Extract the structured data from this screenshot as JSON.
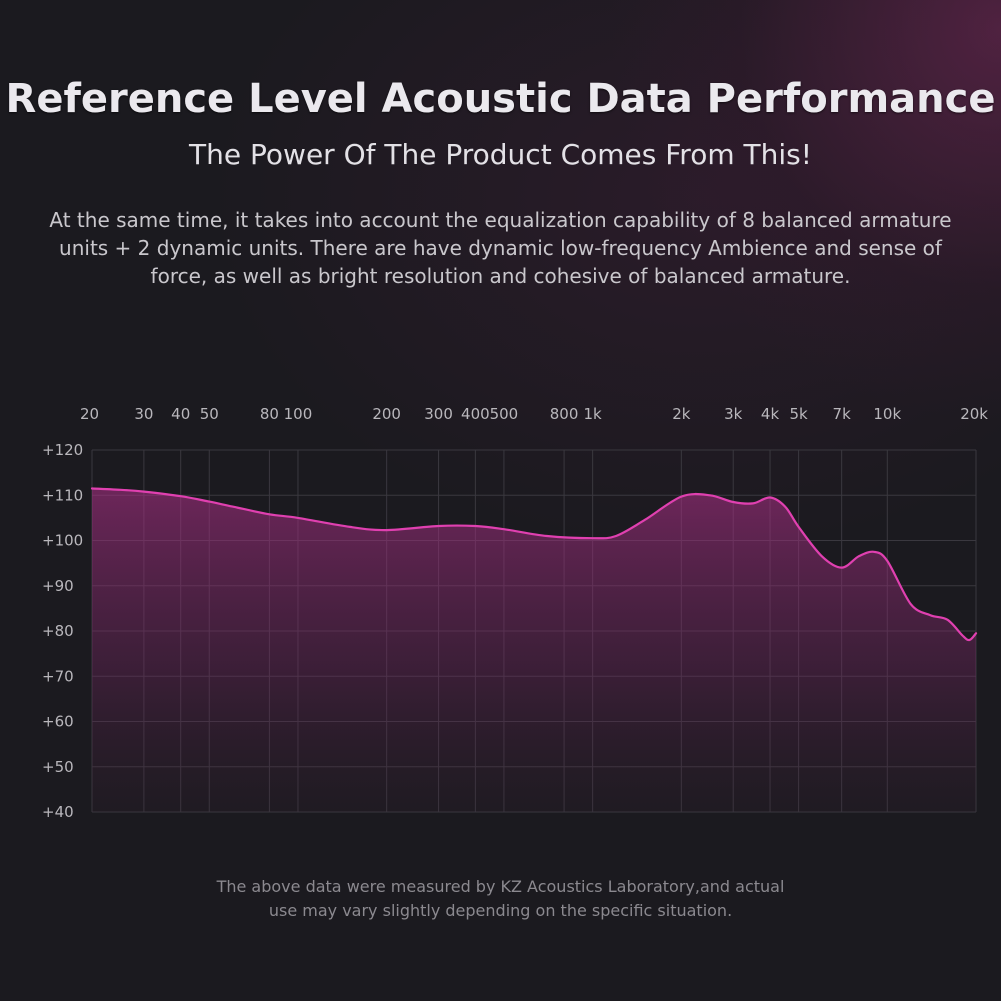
{
  "header": {
    "title": "Reference Level Acoustic Data Performance",
    "subtitle": "The Power Of The Product Comes From This!",
    "description": "At the same time, it takes into account the equalization capability of 8 balanced armature units + 2 dynamic units. There are have dynamic low-frequency Ambience and sense of force, as well as bright resolution and cohesive of balanced armature."
  },
  "footer": {
    "line1": "The above data were measured by KZ Acoustics Laboratory,and actual",
    "line2": "use may vary slightly depending on the specific situation."
  },
  "colors": {
    "background": "#1b1a1f",
    "curve": "#e040b0",
    "fill": "#b0308a",
    "grid": "#3a383f",
    "tick_text": "#b9b7bc"
  },
  "chart_data": {
    "type": "area",
    "x_scale": "log",
    "xlim": [
      20,
      20000
    ],
    "ylim": [
      40,
      120
    ],
    "grid": true,
    "x_tick_values": [
      20,
      30,
      40,
      50,
      80,
      100,
      200,
      300,
      400,
      500,
      800,
      1000,
      2000,
      3000,
      4000,
      5000,
      7000,
      10000,
      20000
    ],
    "x_tick_labels": [
      "20",
      "30",
      "40",
      "50",
      "80",
      "100",
      "200",
      "300",
      "400",
      "500",
      "800",
      "1k",
      "2k",
      "3k",
      "4k",
      "5k",
      "7k",
      "10k",
      "20k"
    ],
    "y_tick_values": [
      120,
      110,
      100,
      90,
      80,
      70,
      60,
      50,
      40
    ],
    "y_tick_labels": [
      "+120",
      "+110",
      "+100",
      "+90",
      "+80",
      "+70",
      "+60",
      "+50",
      "+40"
    ],
    "series": [
      {
        "x": [
          20,
          25,
          30,
          40,
          50,
          60,
          80,
          100,
          150,
          200,
          300,
          400,
          500,
          700,
          1000,
          1200,
          1500,
          2000,
          2500,
          3000,
          3500,
          4000,
          4500,
          5000,
          6000,
          7000,
          8000,
          9000,
          10000,
          12000,
          14000,
          16000,
          18000,
          19000,
          20000
        ],
        "y": [
          111.5,
          111.2,
          110.8,
          109.8,
          108.6,
          107.5,
          105.8,
          105,
          103,
          102.3,
          103.2,
          103.2,
          102.5,
          101,
          100.5,
          101,
          104.5,
          109.7,
          110,
          108.5,
          108.2,
          109.5,
          107.5,
          103,
          96.5,
          94,
          96.5,
          97.5,
          95.5,
          86,
          83.5,
          82.5,
          79,
          78,
          79.5
        ]
      }
    ]
  }
}
